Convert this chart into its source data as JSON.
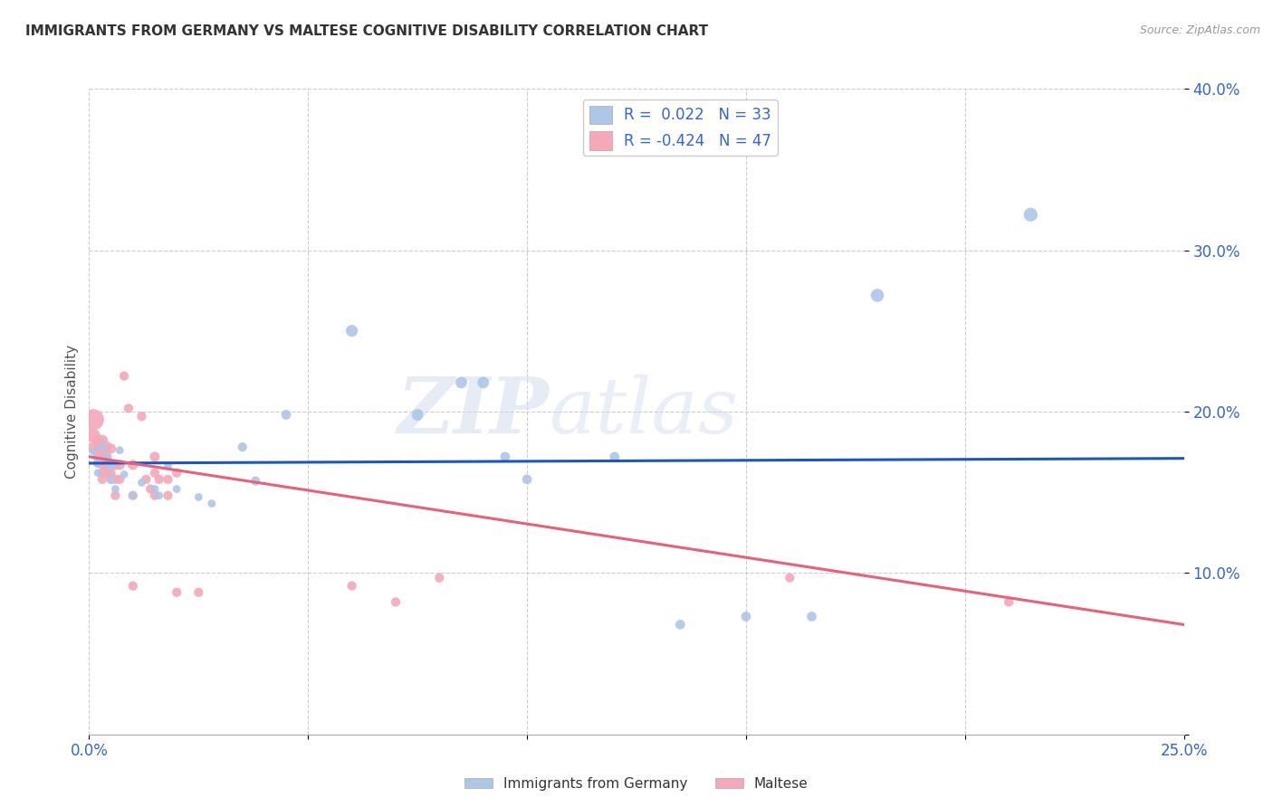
{
  "title": "IMMIGRANTS FROM GERMANY VS MALTESE COGNITIVE DISABILITY CORRELATION CHART",
  "source": "Source: ZipAtlas.com",
  "ylabel": "Cognitive Disability",
  "xlim": [
    0.0,
    0.25
  ],
  "ylim": [
    0.0,
    0.4
  ],
  "xticks": [
    0.0,
    0.05,
    0.1,
    0.15,
    0.2,
    0.25
  ],
  "yticks": [
    0.0,
    0.1,
    0.2,
    0.3,
    0.4
  ],
  "xticklabels": [
    "0.0%",
    "",
    "",
    "",
    "",
    "25.0%"
  ],
  "yticklabels": [
    "",
    "10.0%",
    "20.0%",
    "30.0%",
    "40.0%"
  ],
  "blue_R": 0.022,
  "blue_N": 33,
  "pink_R": -0.424,
  "pink_N": 47,
  "blue_color": "#aec6e8",
  "pink_color": "#f4a8b8",
  "blue_line_color": "#1a56c4",
  "pink_line_color": "#e8607a",
  "watermark_zip": "ZIP",
  "watermark_atlas": "atlas",
  "legend_label_blue": "Immigrants from Germany",
  "legend_label_pink": "Maltese",
  "blue_line_y0": 0.168,
  "blue_line_y1": 0.171,
  "pink_line_y0": 0.172,
  "pink_line_y1": 0.068,
  "blue_points": [
    [
      0.001,
      0.175
    ],
    [
      0.002,
      0.168
    ],
    [
      0.002,
      0.162
    ],
    [
      0.003,
      0.178
    ],
    [
      0.004,
      0.172
    ],
    [
      0.005,
      0.166
    ],
    [
      0.005,
      0.158
    ],
    [
      0.006,
      0.152
    ],
    [
      0.007,
      0.176
    ],
    [
      0.008,
      0.161
    ],
    [
      0.01,
      0.148
    ],
    [
      0.012,
      0.156
    ],
    [
      0.015,
      0.152
    ],
    [
      0.016,
      0.148
    ],
    [
      0.018,
      0.166
    ],
    [
      0.02,
      0.152
    ],
    [
      0.025,
      0.147
    ],
    [
      0.028,
      0.143
    ],
    [
      0.035,
      0.178
    ],
    [
      0.038,
      0.157
    ],
    [
      0.045,
      0.198
    ],
    [
      0.06,
      0.25
    ],
    [
      0.075,
      0.198
    ],
    [
      0.085,
      0.218
    ],
    [
      0.09,
      0.218
    ],
    [
      0.095,
      0.172
    ],
    [
      0.1,
      0.158
    ],
    [
      0.12,
      0.172
    ],
    [
      0.135,
      0.068
    ],
    [
      0.15,
      0.073
    ],
    [
      0.165,
      0.073
    ],
    [
      0.18,
      0.272
    ],
    [
      0.215,
      0.322
    ]
  ],
  "pink_points": [
    [
      0.001,
      0.195
    ],
    [
      0.001,
      0.185
    ],
    [
      0.001,
      0.178
    ],
    [
      0.002,
      0.182
    ],
    [
      0.002,
      0.177
    ],
    [
      0.002,
      0.172
    ],
    [
      0.002,
      0.168
    ],
    [
      0.003,
      0.182
    ],
    [
      0.003,
      0.177
    ],
    [
      0.003,
      0.172
    ],
    [
      0.003,
      0.167
    ],
    [
      0.003,
      0.162
    ],
    [
      0.003,
      0.158
    ],
    [
      0.004,
      0.178
    ],
    [
      0.004,
      0.172
    ],
    [
      0.004,
      0.167
    ],
    [
      0.004,
      0.162
    ],
    [
      0.005,
      0.177
    ],
    [
      0.005,
      0.162
    ],
    [
      0.005,
      0.158
    ],
    [
      0.006,
      0.167
    ],
    [
      0.006,
      0.158
    ],
    [
      0.006,
      0.148
    ],
    [
      0.007,
      0.167
    ],
    [
      0.007,
      0.158
    ],
    [
      0.008,
      0.222
    ],
    [
      0.009,
      0.202
    ],
    [
      0.01,
      0.167
    ],
    [
      0.01,
      0.148
    ],
    [
      0.01,
      0.092
    ],
    [
      0.012,
      0.197
    ],
    [
      0.013,
      0.158
    ],
    [
      0.014,
      0.152
    ],
    [
      0.015,
      0.172
    ],
    [
      0.015,
      0.162
    ],
    [
      0.015,
      0.148
    ],
    [
      0.016,
      0.158
    ],
    [
      0.018,
      0.158
    ],
    [
      0.018,
      0.148
    ],
    [
      0.02,
      0.162
    ],
    [
      0.02,
      0.088
    ],
    [
      0.025,
      0.088
    ],
    [
      0.06,
      0.092
    ],
    [
      0.07,
      0.082
    ],
    [
      0.08,
      0.097
    ],
    [
      0.16,
      0.097
    ],
    [
      0.21,
      0.082
    ]
  ],
  "blue_sizes": [
    40,
    40,
    40,
    40,
    40,
    40,
    40,
    40,
    40,
    40,
    40,
    40,
    40,
    40,
    40,
    40,
    40,
    40,
    55,
    55,
    60,
    90,
    85,
    85,
    85,
    60,
    60,
    60,
    60,
    60,
    60,
    110,
    120
  ],
  "pink_sizes": [
    280,
    120,
    80,
    70,
    65,
    55,
    55,
    85,
    75,
    65,
    55,
    55,
    55,
    75,
    65,
    55,
    55,
    65,
    55,
    55,
    65,
    55,
    55,
    65,
    55,
    55,
    55,
    65,
    55,
    55,
    55,
    55,
    55,
    65,
    55,
    55,
    55,
    55,
    55,
    55,
    55,
    55,
    55,
    55,
    55,
    55,
    55
  ]
}
